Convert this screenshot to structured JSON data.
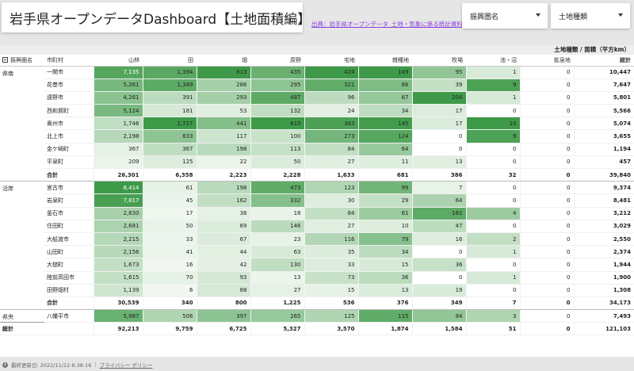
{
  "header": {
    "title": "岩手県オープンデータDashboard【土地面積編】",
    "source_link": "出典：岩手県オープンデータ_土地・気象に係る統計資料"
  },
  "filters": {
    "region_label": "振興圏名",
    "land_type_label": "土地種類"
  },
  "table": {
    "unit_label": "土地種類 / 面積（平方km）",
    "columns": [
      "振興圏名",
      "市町村",
      "山林",
      "田",
      "畑",
      "原野",
      "宅地",
      "雑種地",
      "牧場",
      "池・沼",
      "鉱泉地",
      "総計"
    ],
    "colors": {
      "scale_min": "#f4f9f3",
      "scale_max": "#3e9a48"
    },
    "groups": [
      {
        "region": "県南",
        "rows": [
          {
            "city": "一関市",
            "values": [
              "7,135",
              "1,394",
              "813",
              "435",
              "424",
              "149",
              "95",
              "1",
              "0",
              "10,447"
            ]
          },
          {
            "city": "花巻市",
            "values": [
              "5,261",
              "1,349",
              "286",
              "295",
              "321",
              "86",
              "39",
              "9",
              "0",
              "7,647"
            ]
          },
          {
            "city": "遠野市",
            "values": [
              "4,261",
              "391",
              "293",
              "487",
              "96",
              "67",
              "204",
              "1",
              "0",
              "5,801"
            ]
          },
          {
            "city": "西和賀町",
            "values": [
              "5,124",
              "181",
              "53",
              "132",
              "24",
              "34",
              "17",
              "0",
              "0",
              "5,566"
            ]
          },
          {
            "city": "奥州市",
            "values": [
              "1,746",
              "1,717",
              "441",
              "615",
              "383",
              "145",
              "17",
              "10",
              "0",
              "5,074"
            ]
          },
          {
            "city": "北上市",
            "values": [
              "2,198",
              "833",
              "117",
              "100",
              "273",
              "124",
              "0",
              "9",
              "0",
              "3,655"
            ]
          },
          {
            "city": "金ケ崎町",
            "values": [
              "367",
              "367",
              "198",
              "113",
              "84",
              "64",
              "0",
              "0",
              "0",
              "1,194"
            ]
          },
          {
            "city": "平泉町",
            "values": [
              "209",
              "125",
              "22",
              "50",
              "27",
              "11",
              "13",
              "0",
              "0",
              "457"
            ]
          }
        ],
        "subtotal": {
          "label": "合計",
          "values": [
            "26,301",
            "6,358",
            "2,223",
            "2,228",
            "1,633",
            "681",
            "386",
            "32",
            "0",
            "39,840"
          ]
        }
      },
      {
        "region": "沿岸",
        "rows": [
          {
            "city": "宮古市",
            "values": [
              "8,414",
              "61",
              "198",
              "473",
              "123",
              "99",
              "7",
              "0",
              "0",
              "9,374"
            ]
          },
          {
            "city": "岩泉町",
            "values": [
              "7,817",
              "45",
              "162",
              "332",
              "30",
              "29",
              "64",
              "0",
              "0",
              "8,481"
            ]
          },
          {
            "city": "釜石市",
            "values": [
              "2,830",
              "17",
              "38",
              "18",
              "84",
              "61",
              "161",
              "4",
              "0",
              "3,212"
            ]
          },
          {
            "city": "住田町",
            "values": [
              "2,681",
              "50",
              "69",
              "146",
              "27",
              "10",
              "47",
              "0",
              "0",
              "3,029"
            ]
          },
          {
            "city": "大船渡市",
            "values": [
              "2,215",
              "33",
              "67",
              "23",
              "116",
              "79",
              "16",
              "2",
              "0",
              "2,550"
            ]
          },
          {
            "city": "山田町",
            "values": [
              "2,156",
              "41",
              "44",
              "63",
              "35",
              "34",
              "0",
              "1",
              "0",
              "2,374"
            ]
          },
          {
            "city": "大槌町",
            "values": [
              "1,673",
              "16",
              "42",
              "130",
              "33",
              "15",
              "36",
              "0",
              "0",
              "1,944"
            ]
          },
          {
            "city": "陸前高田市",
            "values": [
              "1,615",
              "70",
              "93",
              "13",
              "73",
              "36",
              "0",
              "1",
              "0",
              "1,900"
            ]
          },
          {
            "city": "田野畑村",
            "values": [
              "1,139",
              "6",
              "88",
              "27",
              "15",
              "13",
              "19",
              "0",
              "0",
              "1,308"
            ]
          }
        ],
        "subtotal": {
          "label": "合計",
          "values": [
            "30,539",
            "340",
            "800",
            "1,225",
            "536",
            "376",
            "349",
            "7",
            "0",
            "34,173"
          ]
        }
      },
      {
        "region": "県央",
        "rows": [
          {
            "city": "八幡平市",
            "values": [
              "5,987",
              "506",
              "397",
              "265",
              "125",
              "115",
              "94",
              "3",
              "0",
              "7,493"
            ]
          }
        ]
      }
    ],
    "grand_total": {
      "label": "総計",
      "values": [
        "92,213",
        "9,759",
        "6,725",
        "5,327",
        "3,570",
        "1,874",
        "1,584",
        "51",
        "0",
        "121,103"
      ]
    }
  },
  "footer": {
    "updated": "最終更新日: 2022/11/12 8:38:16",
    "privacy": "プライバシー ポリシー"
  }
}
